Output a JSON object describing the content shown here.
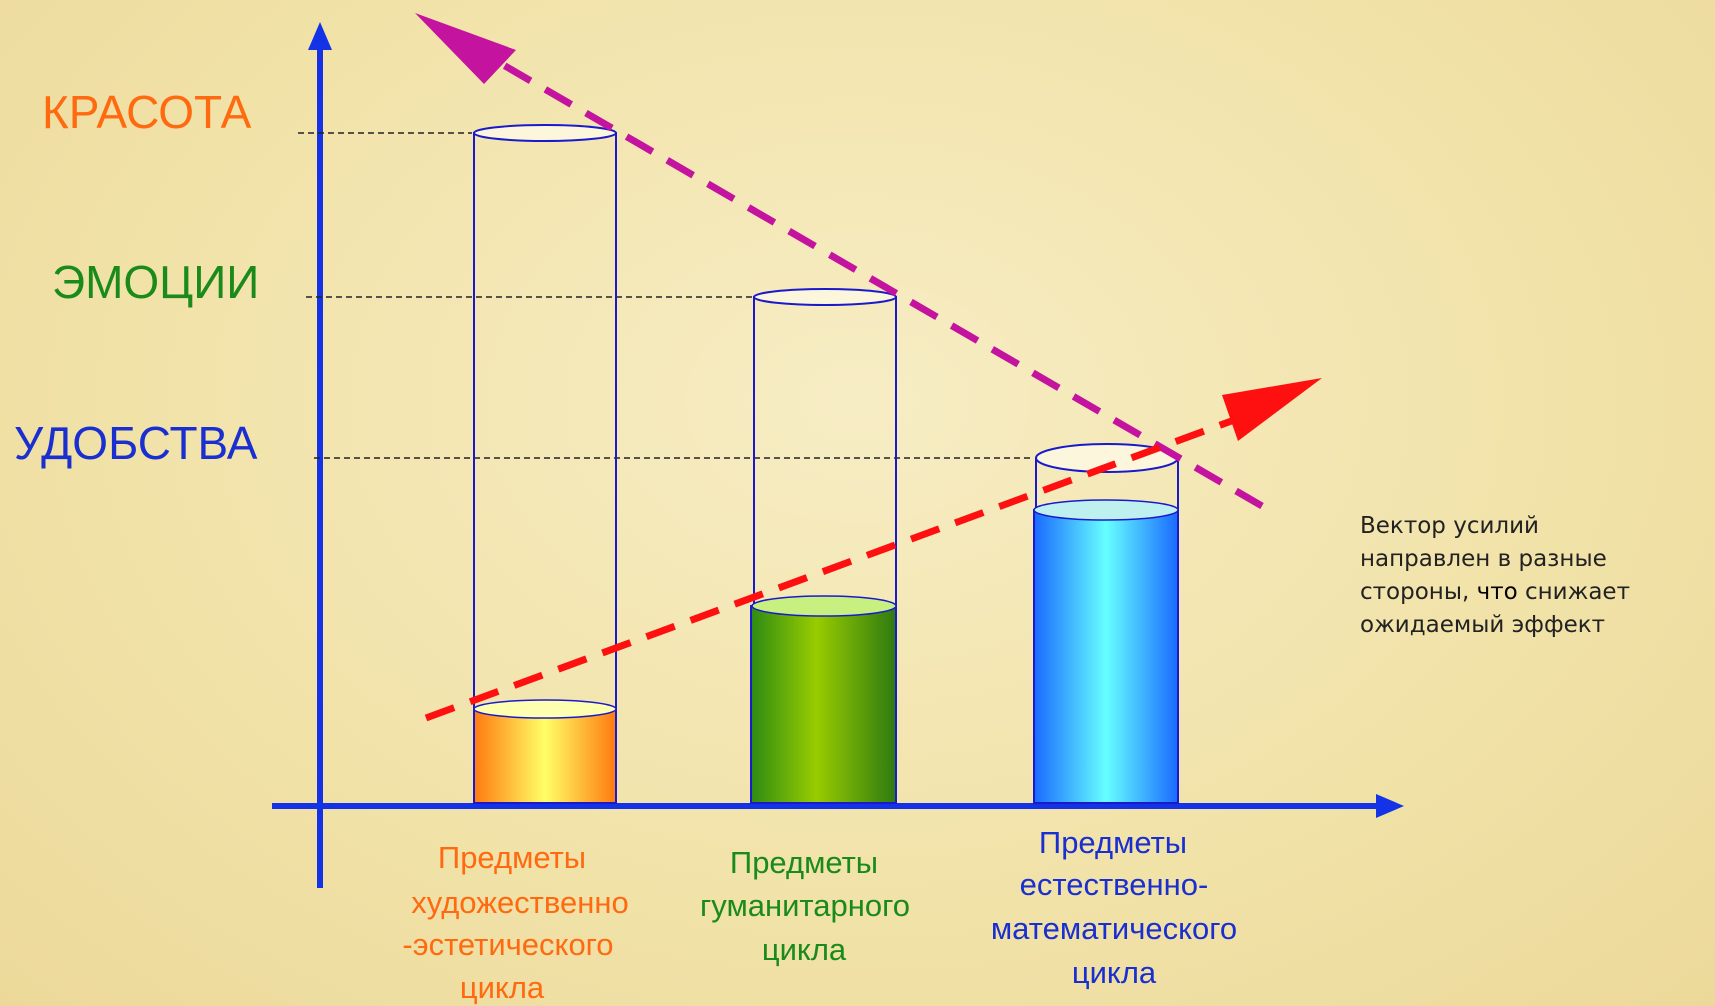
{
  "levels": {
    "beauty": "КРАСОТА",
    "emotions": "ЭМОЦИИ",
    "convenience": "УДОБСТВА"
  },
  "categories": [
    {
      "lines": [
        "Предметы",
        "художественно",
        "-эстетического",
        "цикла"
      ],
      "color": "#ff6a10"
    },
    {
      "lines": [
        "Предметы",
        "гуманитарного",
        "цикла"
      ],
      "color": "#1a8a1a"
    },
    {
      "lines": [
        "Предметы",
        "естественно-",
        "математического",
        "цикла"
      ],
      "color": "#1a2fd0"
    }
  ],
  "note": {
    "line1": "Вектор усилий",
    "line2": "направлен в разные",
    "line3a": "стороны, ",
    "line3b": "что",
    "line3c": " снижает",
    "line4": "ожидаемый эффект"
  },
  "colors": {
    "beauty": "#ff6a10",
    "emotions": "#1a8a1a",
    "convenience": "#1a2fd0",
    "axis": "#1433e6",
    "magenta_arrow": "#c4139e",
    "red_arrow": "#ff1010"
  }
}
